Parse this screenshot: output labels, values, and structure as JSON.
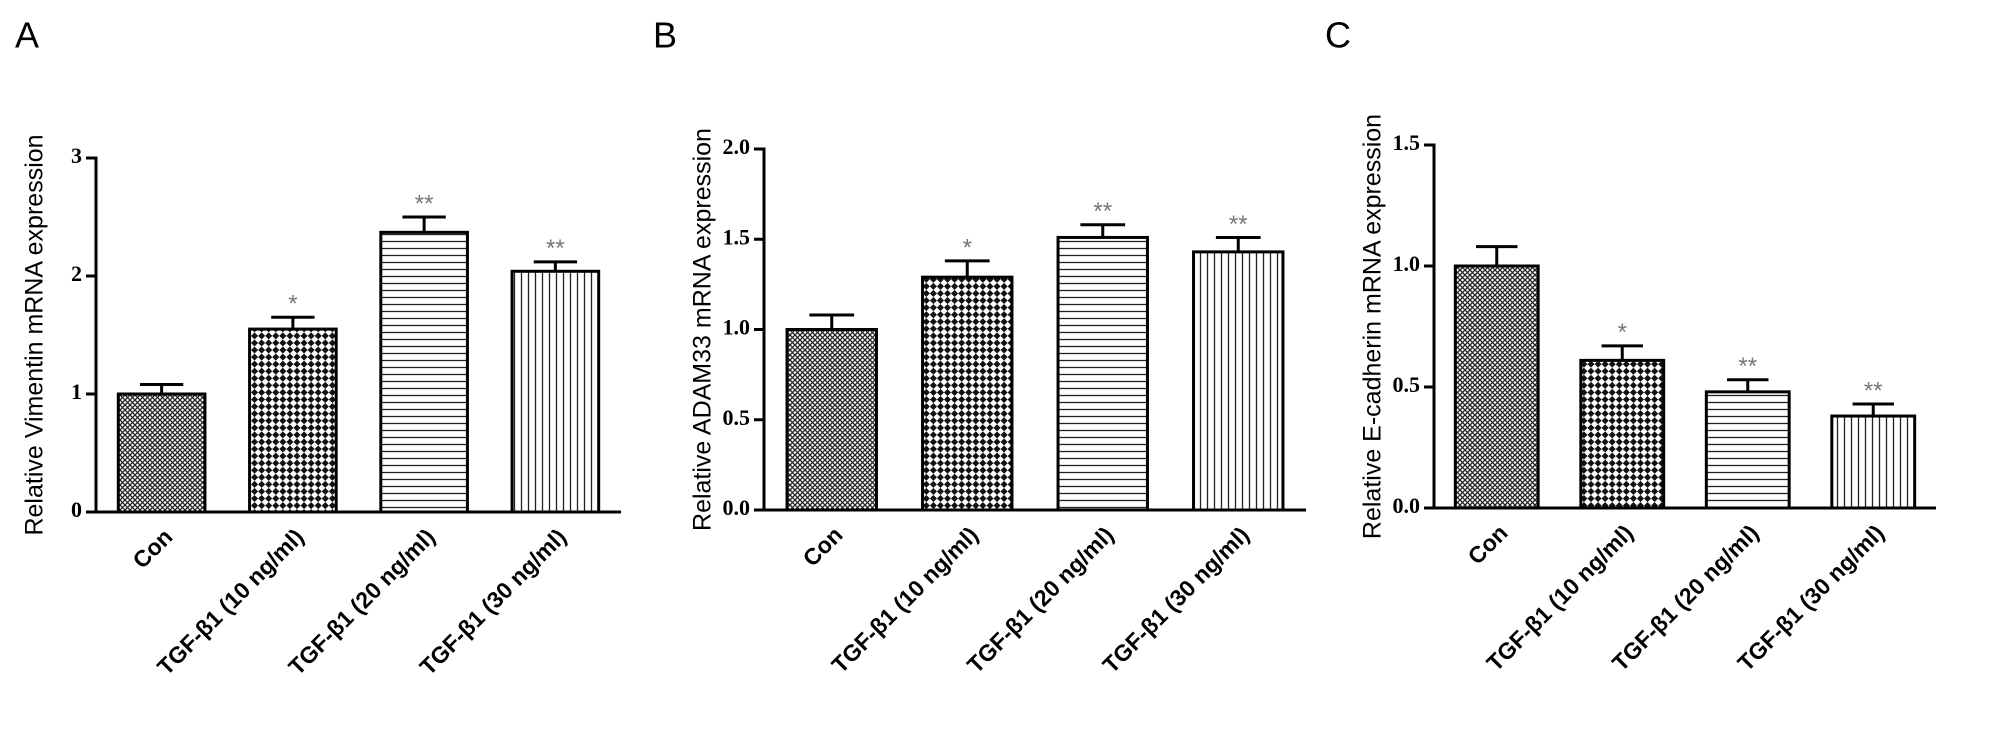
{
  "chart_data": [
    {
      "type": "bar",
      "panel": "A",
      "y_label": "Relative Vimentin mRNA expression",
      "categories": [
        "Con",
        "TGF-β1 (10 ng/ml)",
        "TGF-β1 (20 ng/ml)",
        "TGF-β1 (30 ng/ml)"
      ],
      "values": [
        1.0,
        1.55,
        2.37,
        2.04
      ],
      "errors": [
        0.08,
        0.1,
        0.13,
        0.08
      ],
      "annotations": [
        null,
        "*",
        "**",
        "**"
      ],
      "patterns": [
        "crosshatch",
        "checker",
        "horizontal",
        "vertical"
      ],
      "color": "#000000",
      "ylim": [
        0,
        3
      ],
      "yticks": [
        0,
        1,
        2,
        3
      ]
    },
    {
      "type": "bar",
      "panel": "B",
      "y_label": "Relative ADAM33 mRNA expression",
      "categories": [
        "Con",
        "TGF-β1 (10 ng/ml)",
        "TGF-β1 (20 ng/ml)",
        "TGF-β1 (30 ng/ml)"
      ],
      "values": [
        1.0,
        1.29,
        1.51,
        1.43
      ],
      "errors": [
        0.08,
        0.09,
        0.07,
        0.08
      ],
      "annotations": [
        null,
        "*",
        "**",
        "**"
      ],
      "patterns": [
        "crosshatch",
        "checker",
        "horizontal",
        "vertical"
      ],
      "color": "#000000",
      "ylim": [
        0,
        2
      ],
      "yticks": [
        {
          "value": 0,
          "label": "0.0"
        },
        0.5,
        {
          "value": 1,
          "label": "1.0"
        },
        1.5,
        {
          "value": 2,
          "label": "2.0"
        }
      ]
    },
    {
      "type": "bar",
      "panel": "C",
      "y_label": "Relative E-cadherin mRNA expression",
      "categories": [
        "Con",
        "TGF-β1 (10 ng/ml)",
        "TGF-β1 (20 ng/ml)",
        "TGF-β1 (30 ng/ml)"
      ],
      "values": [
        1.0,
        0.61,
        0.48,
        0.38
      ],
      "errors": [
        0.08,
        0.06,
        0.05,
        0.05
      ],
      "annotations": [
        null,
        "*",
        "**",
        "**"
      ],
      "patterns": [
        "crosshatch",
        "checker",
        "horizontal",
        "vertical"
      ],
      "color": "#000000",
      "ylim": [
        0,
        1.5
      ],
      "yticks": [
        {
          "value": 0,
          "label": "0.0"
        },
        0.5,
        {
          "value": 1,
          "label": "1.0"
        },
        1.5
      ]
    }
  ]
}
